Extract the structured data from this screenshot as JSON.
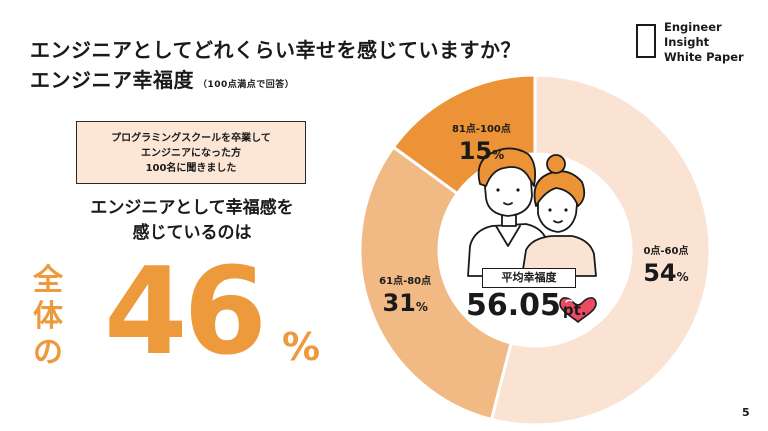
{
  "slide": {
    "title": "エンジニアとしてどれくらい幸せを感じていますか？",
    "subtitle": "エンジニア幸福度",
    "subtitle_note": "（100点満点で回答）",
    "page_number": "5"
  },
  "logo": {
    "line1": "Engineer",
    "line2": "Insight",
    "line3": "White Paper"
  },
  "note_box": {
    "line1": "プログラミングスクールを卒業して",
    "line2": "エンジニアになった方",
    "line3": "100名に聞きました"
  },
  "headline": {
    "line1": "エンジニアとして幸福感を",
    "line2": "感じているのは",
    "prefix": "全体の",
    "value": "46",
    "unit": "%"
  },
  "average": {
    "label": "平均幸福度",
    "value": "56.05",
    "unit": "pt."
  },
  "chart_data": {
    "type": "pie",
    "variant": "donut",
    "categories": [
      "0点-60点",
      "61点-80点",
      "81点-100点"
    ],
    "values": [
      54,
      31,
      15
    ],
    "unit": "%",
    "labels": [
      "54%",
      "31%",
      "15%"
    ],
    "colors": [
      "#fbe3d3",
      "#f1b983",
      "#ec9338"
    ]
  },
  "colors": {
    "accent": "#ed9a3c",
    "box_fill": "#fce6d6",
    "text": "#1a1a1a"
  }
}
